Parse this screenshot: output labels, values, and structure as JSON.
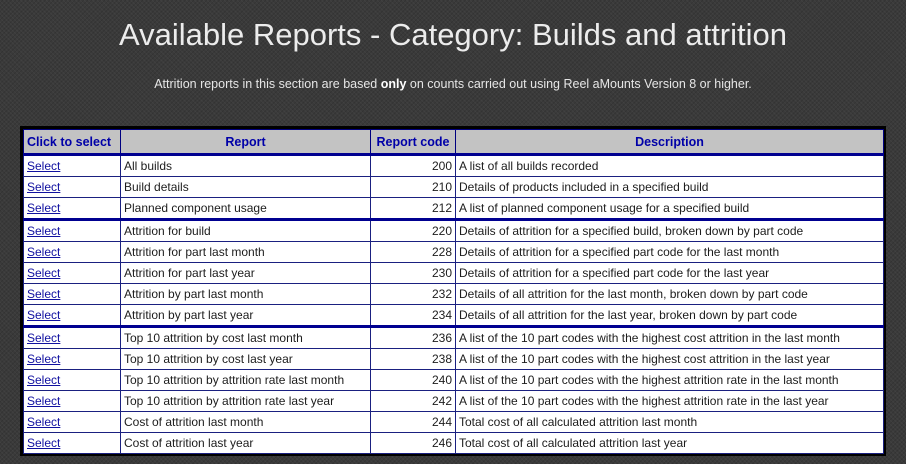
{
  "header": {
    "title": "Available Reports - Category: Builds and attrition",
    "intro_before": "Attrition reports in this section are based ",
    "intro_bold": "only",
    "intro_after": " on counts carried out using Reel aMounts Version 8 or higher."
  },
  "table": {
    "columns": {
      "select": "Click to select",
      "report": "Report",
      "code": "Report code",
      "description": "Description"
    },
    "rows": [
      {
        "select": "Select",
        "report": "All builds",
        "code": "200",
        "description": "A list of all builds recorded"
      },
      {
        "select": "Select",
        "report": "Build details",
        "code": "210",
        "description": "Details of products included in a specified build"
      },
      {
        "select": "Select",
        "report": "Planned component usage",
        "code": "212",
        "description": "A list of planned component usage for a specified build"
      },
      {
        "select": "Select",
        "report": "Attrition for build",
        "code": "220",
        "description": "Details of attrition for a specified build, broken down by part code"
      },
      {
        "select": "Select",
        "report": "Attrition for part last month",
        "code": "228",
        "description": "Details of attrition for a specified part code for the last month"
      },
      {
        "select": "Select",
        "report": "Attrition for part last year",
        "code": "230",
        "description": "Details of attrition for a specified part code for the last year"
      },
      {
        "select": "Select",
        "report": "Attrition by part last month",
        "code": "232",
        "description": "Details of all attrition for the last month, broken down by part code"
      },
      {
        "select": "Select",
        "report": "Attrition by part last year",
        "code": "234",
        "description": "Details of all attrition for the last year, broken down by part code"
      },
      {
        "select": "Select",
        "report": "Top 10 attrition by cost last month",
        "code": "236",
        "description": "A list of the 10 part codes with the highest cost attrition in the last month"
      },
      {
        "select": "Select",
        "report": "Top 10 attrition by cost last year",
        "code": "238",
        "description": "A list of the 10 part codes with the highest cost attrition in the last year"
      },
      {
        "select": "Select",
        "report": "Top 10 attrition by attrition rate last month",
        "code": "240",
        "description": "A list of the 10 part codes with the highest attrition rate in the last month"
      },
      {
        "select": "Select",
        "report": "Top 10 attrition by attrition rate last year",
        "code": "242",
        "description": "A list of the 10 part codes with the highest attrition rate in the last year"
      },
      {
        "select": "Select",
        "report": "Cost of attrition last month",
        "code": "244",
        "description": "Total cost of all calculated attrition last month"
      },
      {
        "select": "Select",
        "report": "Cost of attrition last year",
        "code": "246",
        "description": "Total cost of all calculated attrition last year"
      }
    ]
  }
}
